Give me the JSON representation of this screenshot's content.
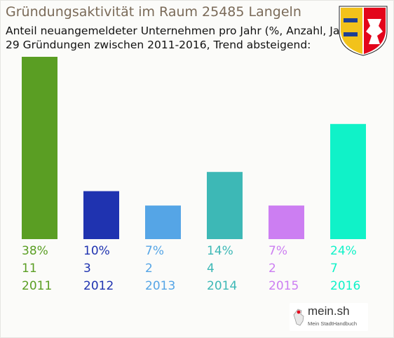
{
  "title": "Gründungsaktivität im Raum 25485 Langeln",
  "subtitle_line1": "Anteil neuangemeldeter Unternehmen pro Jahr (%, Anzahl, Jahr)",
  "subtitle_line2": "29 Gründungen zwischen 2011-2016, Trend absteigend:",
  "logo": {
    "word": "mein.sh",
    "tagline": "Mein StadtHandbuch"
  },
  "crest_icon": "schleswig-holstein-coat-of-arms",
  "chart_data": {
    "type": "bar",
    "categories": [
      "2011",
      "2012",
      "2013",
      "2014",
      "2015",
      "2016"
    ],
    "percent_labels": [
      "38%",
      "10%",
      "7%",
      "14%",
      "7%",
      "24%"
    ],
    "count_labels": [
      "11",
      "3",
      "2",
      "4",
      "2",
      "7"
    ],
    "values": [
      38,
      10,
      7,
      14,
      7,
      24
    ],
    "colors": [
      "#5a9e23",
      "#1f33b0",
      "#55a5e6",
      "#3db8b6",
      "#cc7ef2",
      "#10f2c8"
    ],
    "ylim": [
      0,
      38
    ],
    "grid": false,
    "legend": "none"
  }
}
